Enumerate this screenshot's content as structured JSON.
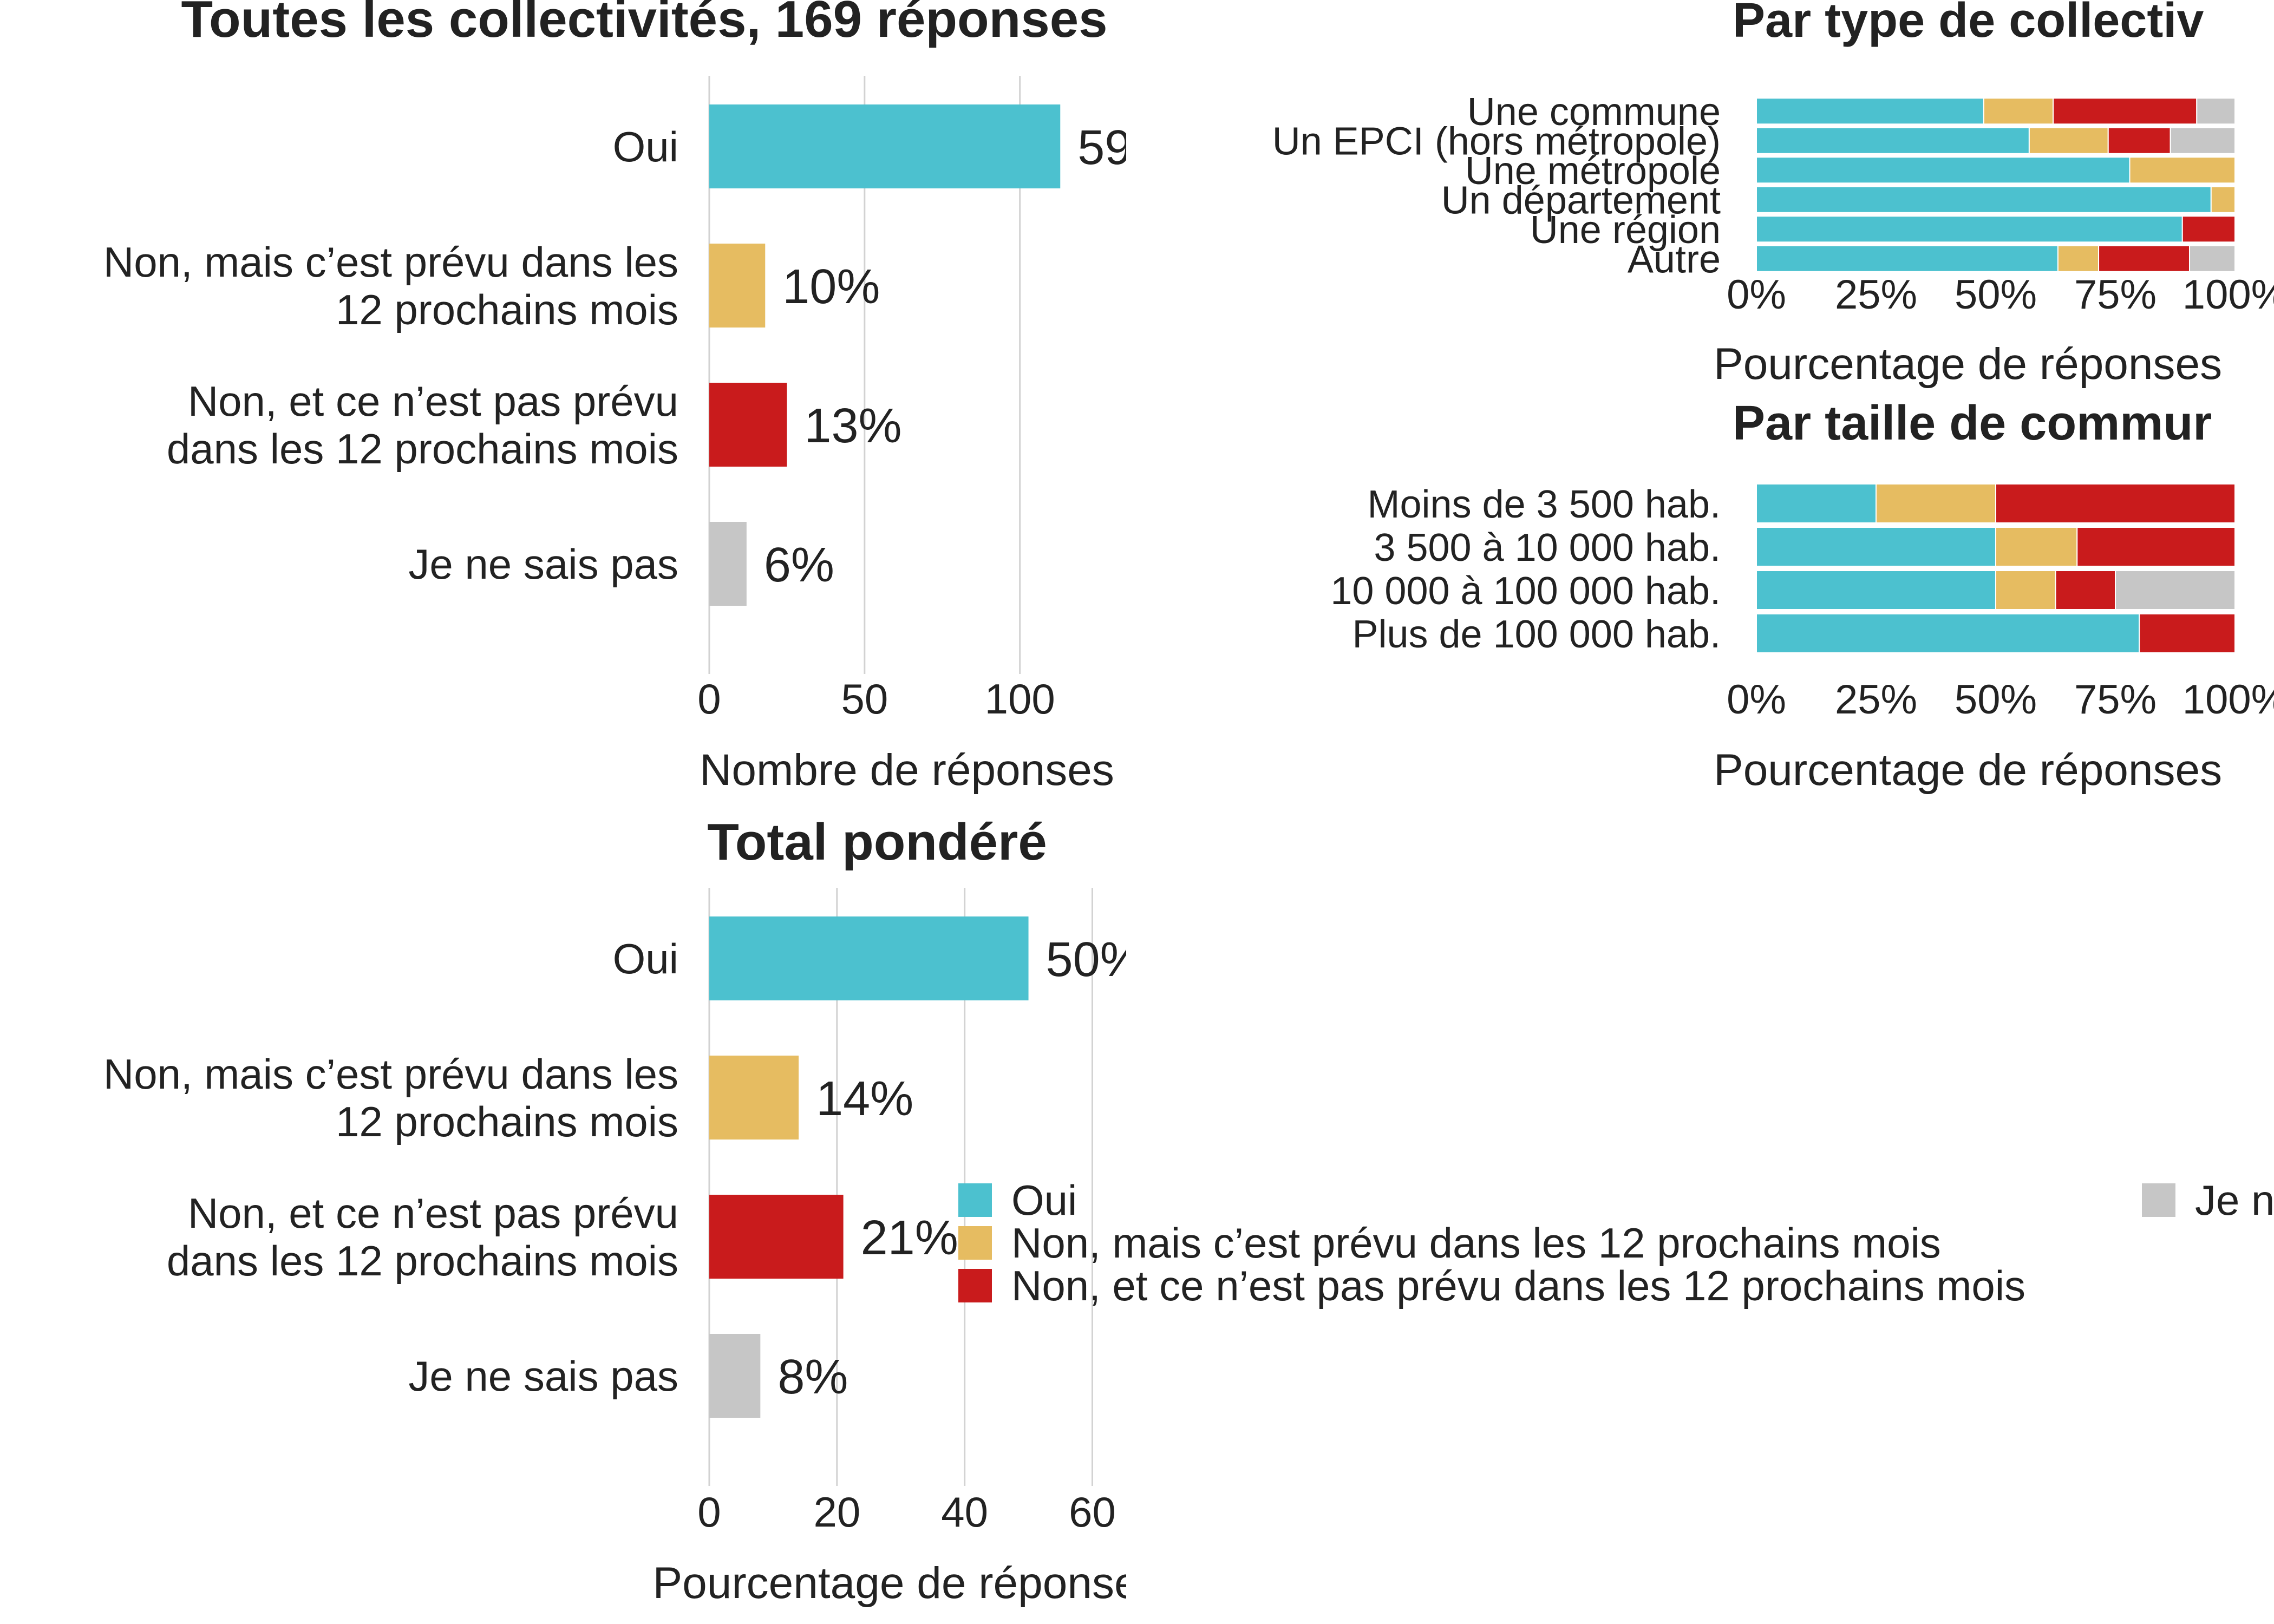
{
  "colors": {
    "oui": "#4cc1cf",
    "prevu": "#e6bc61",
    "non": "#c91b1c",
    "nsp": "#c6c6c6",
    "text": "#222222",
    "grid": "#d2d2d2"
  },
  "chart_data": [
    {
      "id": "toutes",
      "type": "bar",
      "orientation": "horizontal",
      "title": "Toutes les collectivités, 169 réponses",
      "xlabel": "Nombre de réponses",
      "ylabel": "",
      "xlim": [
        0,
        133
      ],
      "xticks": [
        {
          "v": 0,
          "label": "0"
        },
        {
          "v": 50,
          "label": "50"
        },
        {
          "v": 100,
          "label": "100"
        }
      ],
      "grid": true,
      "categories": [
        [
          "Oui"
        ],
        [
          "Non, mais c’est prévu dans les",
          "12 prochains mois"
        ],
        [
          "Non, et ce n’est pas prévu",
          "dans les 12 prochains mois"
        ],
        [
          "Je ne sais pas"
        ]
      ],
      "values": [
        113,
        18,
        25,
        12
      ],
      "data_labels": [
        "59",
        "10%",
        "13%",
        "6%"
      ],
      "colors": [
        "oui",
        "prevu",
        "non",
        "nsp"
      ]
    },
    {
      "id": "pondere",
      "type": "bar",
      "orientation": "horizontal",
      "title": "Total pondéré",
      "xlabel": "Pourcentage de réponses",
      "ylabel": "",
      "xlim": [
        0,
        67
      ],
      "xticks": [
        {
          "v": 0,
          "label": "0"
        },
        {
          "v": 20,
          "label": "20"
        },
        {
          "v": 40,
          "label": "40"
        },
        {
          "v": 60,
          "label": "60"
        }
      ],
      "grid": true,
      "categories": [
        [
          "Oui"
        ],
        [
          "Non, mais c’est prévu dans les",
          "12 prochains mois"
        ],
        [
          "Non, et ce n’est pas prévu",
          "dans les 12 prochains mois"
        ],
        [
          "Je ne sais pas"
        ]
      ],
      "values": [
        50,
        14,
        21,
        8
      ],
      "data_labels": [
        "50%",
        "14%",
        "21%",
        "8%"
      ],
      "colors": [
        "oui",
        "prevu",
        "non",
        "nsp"
      ]
    },
    {
      "id": "type",
      "type": "bar",
      "orientation": "horizontal",
      "stacked": true,
      "title": "Par type de collectiv",
      "xlabel": "Pourcentage de réponses",
      "ylabel": "",
      "xlim": [
        0,
        100
      ],
      "xticks": [
        {
          "v": 0,
          "label": "0%"
        },
        {
          "v": 25,
          "label": "25%"
        },
        {
          "v": 50,
          "label": "50%"
        },
        {
          "v": 75,
          "label": "75%"
        },
        {
          "v": 100,
          "label": "100%"
        }
      ],
      "categories": [
        "Une commune",
        "Un EPCI (hors métropole)",
        "Une métropole",
        "Un département",
        "Une région",
        "Autre"
      ],
      "series": [
        {
          "key": "oui",
          "values": [
            47.5,
            57,
            78,
            95,
            89,
            63
          ]
        },
        {
          "key": "prevu",
          "values": [
            14.5,
            16.5,
            22,
            5,
            0,
            8.5
          ]
        },
        {
          "key": "non",
          "values": [
            30,
            13,
            0,
            0,
            11,
            19
          ]
        },
        {
          "key": "nsp",
          "values": [
            8,
            13.5,
            0,
            0,
            0,
            9.5
          ]
        }
      ]
    },
    {
      "id": "taille",
      "type": "bar",
      "orientation": "horizontal",
      "stacked": true,
      "title": "Par taille de commur",
      "xlabel": "Pourcentage de réponses",
      "ylabel": "",
      "xlim": [
        0,
        100
      ],
      "xticks": [
        {
          "v": 0,
          "label": "0%"
        },
        {
          "v": 25,
          "label": "25%"
        },
        {
          "v": 50,
          "label": "50%"
        },
        {
          "v": 75,
          "label": "75%"
        },
        {
          "v": 100,
          "label": "100%"
        }
      ],
      "categories": [
        "Moins de 3 500 hab.",
        "3 500 à 10 000 hab.",
        "10 000 à 100 000 hab.",
        "Plus de 100 000 hab."
      ],
      "series": [
        {
          "key": "oui",
          "values": [
            25,
            50,
            50,
            80
          ]
        },
        {
          "key": "prevu",
          "values": [
            25,
            17,
            12.5,
            0
          ]
        },
        {
          "key": "non",
          "values": [
            50,
            33,
            12.5,
            20
          ]
        },
        {
          "key": "nsp",
          "values": [
            0,
            0,
            25,
            0
          ]
        }
      ]
    }
  ],
  "legend": {
    "placement": "bottom-center",
    "items": [
      {
        "key": "oui",
        "label": "Oui"
      },
      {
        "key": "prevu",
        "label": "Non, mais c’est prévu dans les 12 prochains mois"
      },
      {
        "key": "non",
        "label": "Non, et ce n’est pas prévu dans les 12 prochains mois"
      },
      {
        "key": "nsp",
        "label": "Je n"
      }
    ]
  }
}
